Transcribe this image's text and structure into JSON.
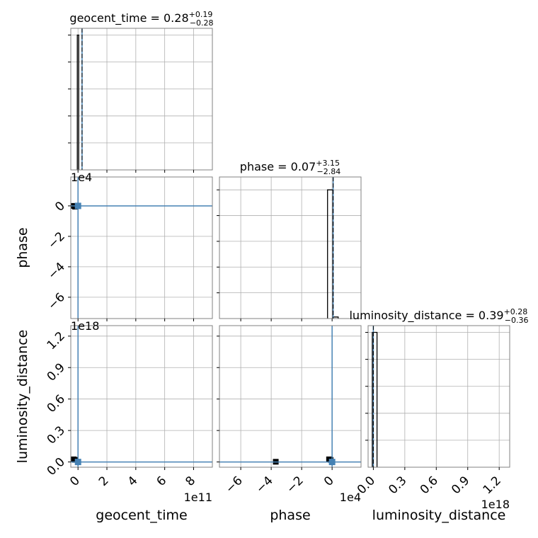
{
  "figure": {
    "parameters": [
      "geocent_time",
      "phase",
      "luminosity_distance"
    ]
  },
  "chart_data": [
    {
      "type": "histogram",
      "panel": "diag-0",
      "parameter": "geocent_time",
      "title": {
        "base": "geocent_time = 0.28",
        "sup": "+0.19",
        "sub": "−0.28"
      },
      "x_ticks": [],
      "bins": [
        {
          "x0": -0.05,
          "x1": 0.05,
          "height": 1.0
        }
      ],
      "median": 0.28,
      "xlim": [
        -0.5,
        9.3
      ],
      "ylim": [
        0,
        1.05
      ]
    },
    {
      "type": "histogram",
      "panel": "diag-1",
      "parameter": "phase",
      "title": {
        "base": "phase = 0.07",
        "sup": "+3.15",
        "sub": "−2.84"
      },
      "bins": [
        {
          "x0": -0.3,
          "x1": 0.05,
          "height": 1.0
        },
        {
          "x0": 0.05,
          "x1": 0.4,
          "height": 0.012
        }
      ],
      "median": 0.07,
      "xlim": [
        -7.4,
        1.9
      ],
      "ylim": [
        0,
        1.1
      ]
    },
    {
      "type": "histogram",
      "panel": "diag-2",
      "parameter": "luminosity_distance",
      "title": {
        "base": "luminosity_distance = 0.39",
        "sup": "+0.28",
        "sub": "−0.36"
      },
      "x_ticks": [
        "0.0",
        "0.3",
        "0.6",
        "0.9",
        "1.2"
      ],
      "x_tick_values": [
        0.0,
        0.3,
        0.6,
        0.9,
        1.2
      ],
      "x_offset": "1e18",
      "xlabel": "luminosity_distance",
      "bins": [
        {
          "x0": -0.01,
          "x1": 0.035,
          "height": 1.0
        }
      ],
      "median": 0.0,
      "xlim": [
        -0.05,
        1.3
      ],
      "ylim": [
        0,
        1.05
      ]
    },
    {
      "type": "scatter",
      "panel": "lower-1-0",
      "x_param": "geocent_time",
      "y_param": "phase",
      "y_ticks": [
        "0",
        "−2",
        "−4",
        "−6"
      ],
      "y_tick_values": [
        0,
        -2,
        -4,
        -6
      ],
      "y_offset": "1e4",
      "ylabel": "phase",
      "xlim": [
        -0.5,
        9.3
      ],
      "ylim": [
        -7.4,
        1.9
      ],
      "truth": {
        "x": 0.0,
        "y": 0.0
      },
      "points": [
        [
          -0.3,
          0.0
        ],
        [
          -0.2,
          -0.05
        ]
      ]
    },
    {
      "type": "scatter",
      "panel": "lower-2-0",
      "x_param": "geocent_time",
      "y_param": "luminosity_distance",
      "x_ticks": [
        "0",
        "2",
        "4",
        "6",
        "8"
      ],
      "x_tick_values": [
        0,
        2,
        4,
        6,
        8
      ],
      "x_offset": "1e11",
      "xlabel": "geocent_time",
      "y_ticks": [
        "0.0",
        "0.3",
        "0.6",
        "0.9",
        "1.2"
      ],
      "y_tick_values": [
        0.0,
        0.3,
        0.6,
        0.9,
        1.2
      ],
      "y_offset": "1e18",
      "ylabel": "luminosity_distance",
      "xlim": [
        -0.5,
        9.3
      ],
      "ylim": [
        -0.05,
        1.3
      ],
      "truth": {
        "x": 0.0,
        "y": 0.0
      },
      "points": [
        [
          -0.3,
          0.025
        ],
        [
          -0.2,
          0.02
        ]
      ]
    },
    {
      "type": "scatter",
      "panel": "lower-2-1",
      "x_param": "phase",
      "y_param": "luminosity_distance",
      "x_ticks": [
        "−6",
        "−4",
        "−2",
        "0"
      ],
      "x_tick_values": [
        -6,
        -4,
        -2,
        0
      ],
      "x_offset": "1e4",
      "xlabel": "phase",
      "xlim": [
        -7.4,
        1.9
      ],
      "ylim": [
        -0.05,
        1.3
      ],
      "truth": {
        "x": 0.0,
        "y": 0.0
      },
      "points": [
        [
          -0.2,
          0.025
        ],
        [
          -0.1,
          0.02
        ],
        [
          -3.7,
          0.002
        ]
      ]
    }
  ],
  "colors": {
    "truth": "#4682b4",
    "histogram": "#000000",
    "grid": "#b0b0b0",
    "frame": "#808080",
    "points": "#000000"
  }
}
